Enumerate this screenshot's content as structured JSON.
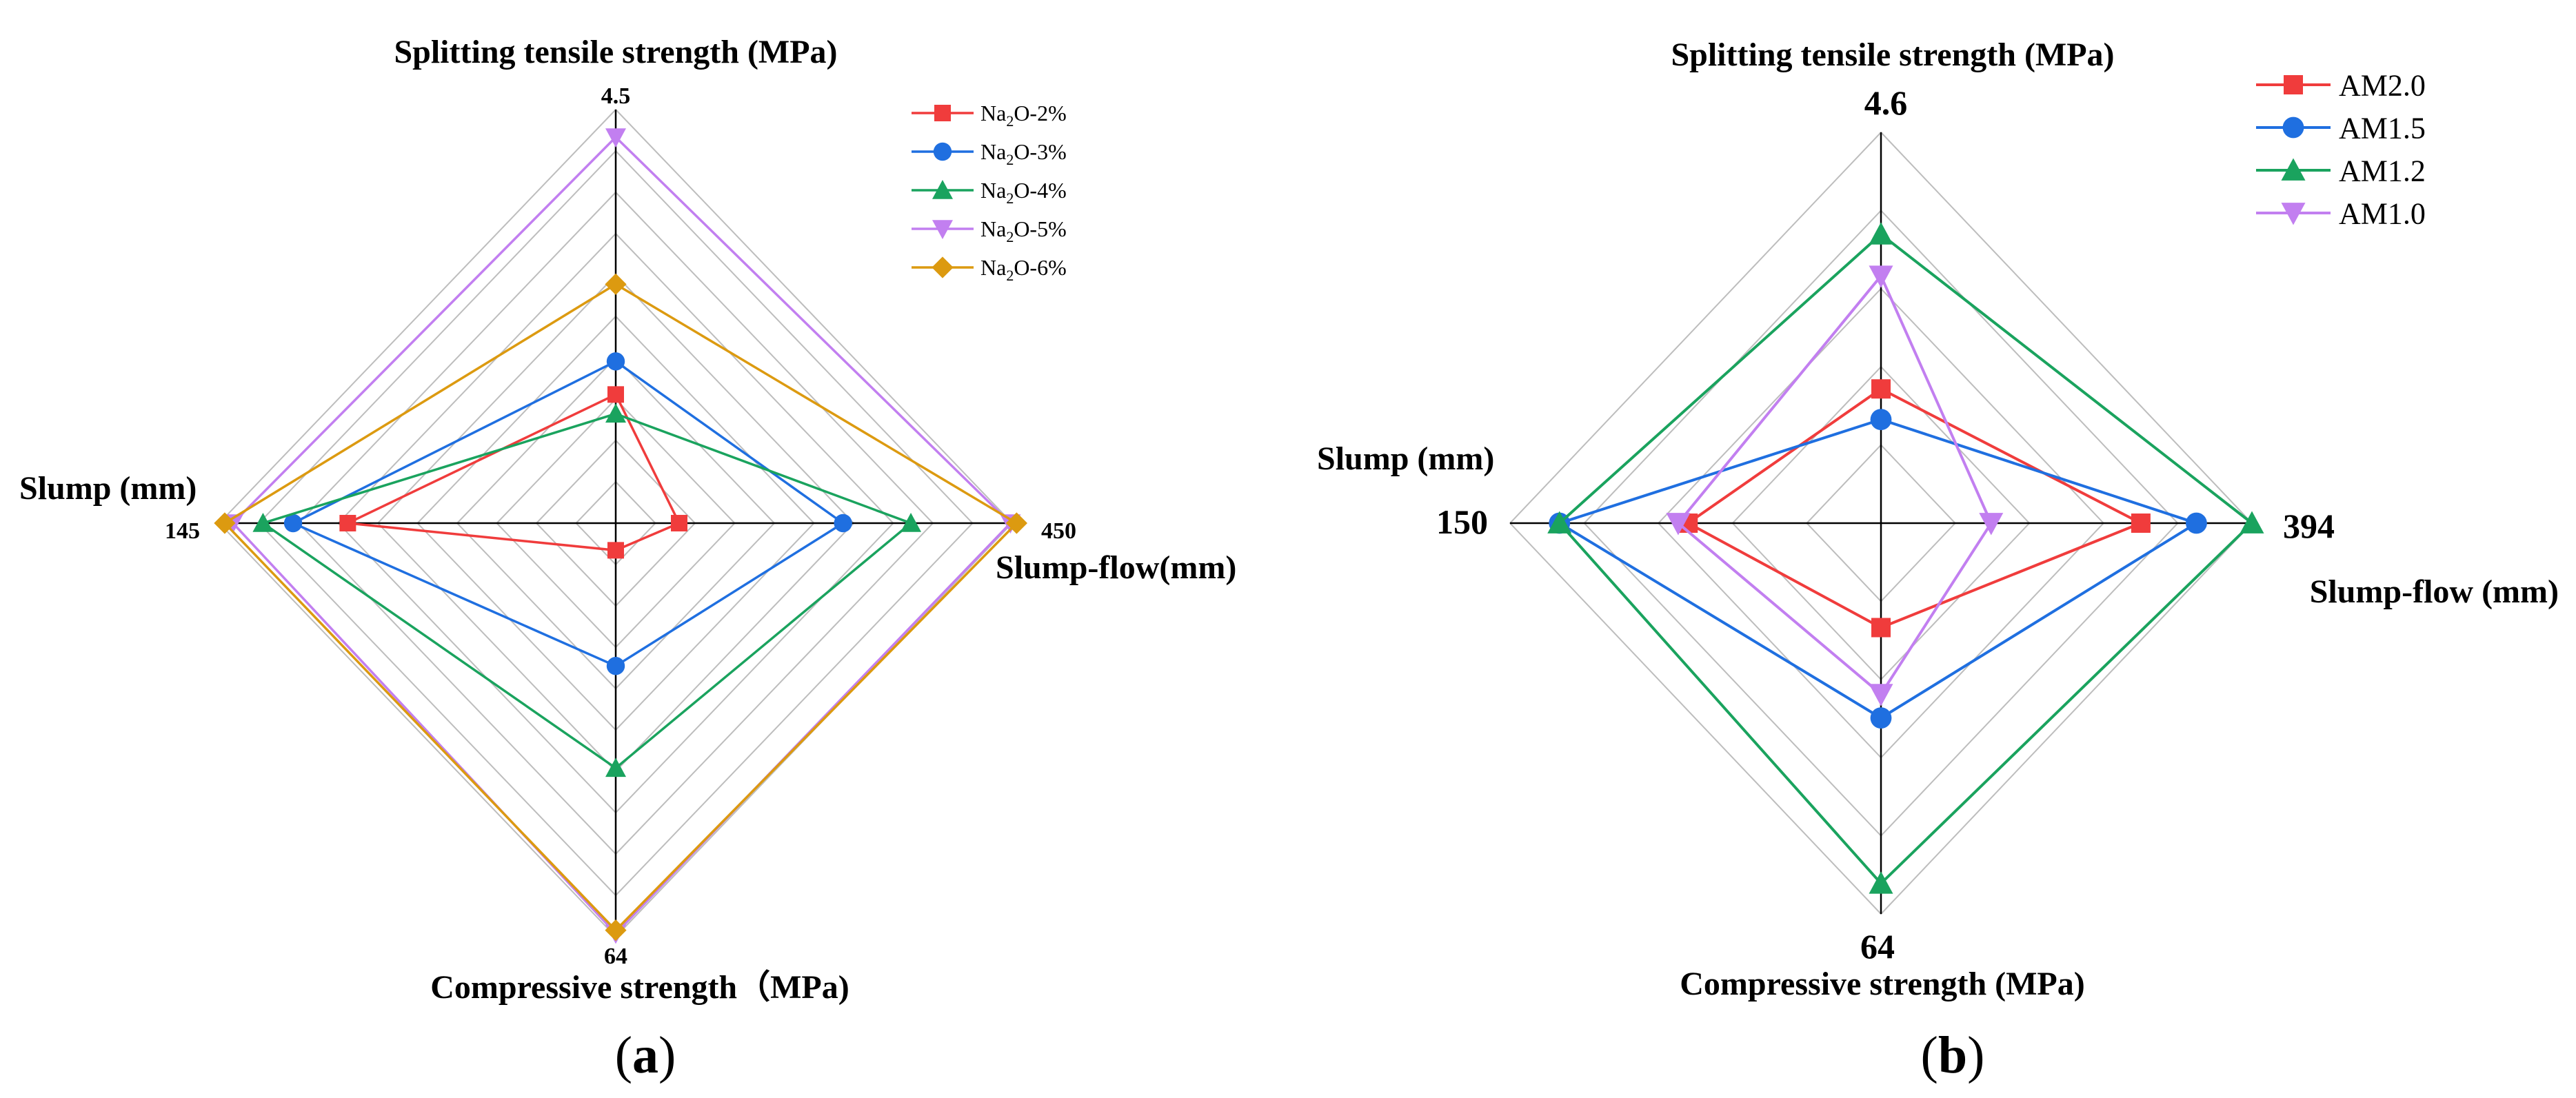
{
  "chart_data": [
    {
      "type": "radar",
      "panel_label": "a",
      "axes": [
        {
          "key": "top",
          "title": "Splitting tensile strength (MPa)",
          "max_label": "4.5",
          "max": 4.5
        },
        {
          "key": "right",
          "title": "Slump-flow(mm)",
          "max_label": "450",
          "max": 450
        },
        {
          "key": "bottom",
          "title": "Compressive strength（MPa)",
          "max_label": "64",
          "max": 64
        },
        {
          "key": "left",
          "title": "Slump (mm)",
          "max_label": "145",
          "max": 145
        }
      ],
      "grid_levels": 10,
      "legend_position": "top-right",
      "series": [
        {
          "name_base": "Na",
          "name_sub": "2",
          "name_rest": "O-2%",
          "color": "#f03c3c",
          "marker": "square",
          "values": {
            "top": 1.4,
            "right": 72,
            "bottom": 4.2,
            "left": 98
          }
        },
        {
          "name_base": "Na",
          "name_sub": "2",
          "name_rest": "O-3%",
          "color": "#1f6fe0",
          "marker": "circle",
          "values": {
            "top": 1.76,
            "right": 258,
            "bottom": 22.1,
            "left": 118
          }
        },
        {
          "name_base": "Na",
          "name_sub": "2",
          "name_rest": "O-4%",
          "color": "#1aa35e",
          "marker": "triangle-up",
          "values": {
            "top": 1.19,
            "right": 335,
            "bottom": 37.9,
            "left": 129
          }
        },
        {
          "name_base": "Na",
          "name_sub": "2",
          "name_rest": "O-5%",
          "color": "#c27ff0",
          "marker": "triangle-down",
          "values": {
            "top": 4.2,
            "right": 448,
            "bottom": 63.5,
            "left": 140
          }
        },
        {
          "name_base": "Na",
          "name_sub": "2",
          "name_rest": "O-6%",
          "color": "#dc9a10",
          "marker": "diamond",
          "values": {
            "top": 2.6,
            "right": 455,
            "bottom": 63.0,
            "left": 143
          }
        }
      ]
    },
    {
      "type": "radar",
      "panel_label": "b",
      "axes": [
        {
          "key": "top",
          "title": "Splitting tensile strength (MPa)",
          "max_label": "4.6",
          "max": 4.6
        },
        {
          "key": "right",
          "title": "Slump-flow (mm)",
          "max_label": "394",
          "max": 394
        },
        {
          "key": "bottom",
          "title": "Compressive strength (MPa)",
          "max_label": "64",
          "max": 64
        },
        {
          "key": "left",
          "title": "Slump (mm)",
          "max_label": "150",
          "max": 150
        }
      ],
      "grid_levels": 5,
      "legend_position": "top-right",
      "series": [
        {
          "name_base": "AM2.0",
          "name_sub": "",
          "name_rest": "",
          "color": "#f03c3c",
          "marker": "square",
          "values": {
            "top": 1.58,
            "right": 276,
            "bottom": 17.1,
            "left": 78
          }
        },
        {
          "name_base": "AM1.5",
          "name_sub": "",
          "name_rest": "",
          "color": "#1f6fe0",
          "marker": "circle",
          "values": {
            "top": 1.22,
            "right": 335,
            "bottom": 31.9,
            "left": 130
          }
        },
        {
          "name_base": "AM1.2",
          "name_sub": "",
          "name_rest": "",
          "color": "#1aa35e",
          "marker": "triangle-up",
          "values": {
            "top": 3.4,
            "right": 394,
            "bottom": 59.0,
            "left": 130
          }
        },
        {
          "name_base": "AM1.0",
          "name_sub": "",
          "name_rest": "",
          "color": "#c27ff0",
          "marker": "triangle-down",
          "values": {
            "top": 2.91,
            "right": 117,
            "bottom": 28.0,
            "left": 82
          }
        }
      ]
    }
  ]
}
